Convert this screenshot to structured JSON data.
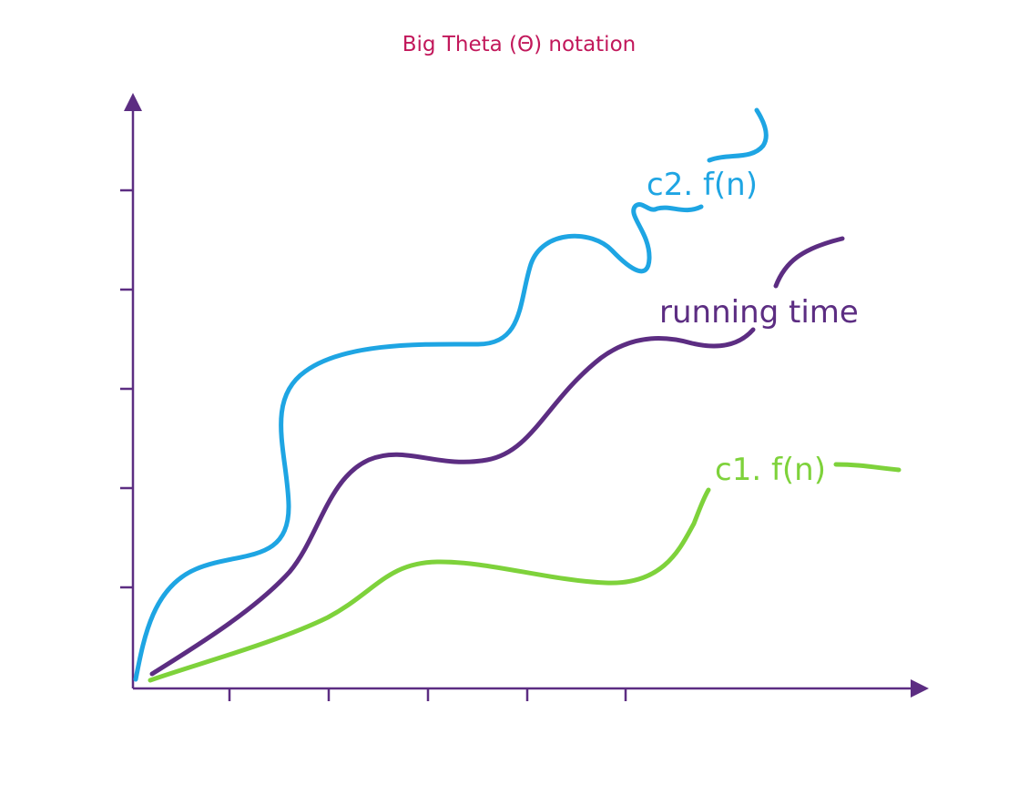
{
  "title": "Big Theta (Θ) notation",
  "curves": [
    {
      "id": "upper-bound",
      "label": "c2. f(n)",
      "color": "#1ea5e3"
    },
    {
      "id": "running-time",
      "label": "running time",
      "color": "#5c2d82"
    },
    {
      "id": "lower-bound",
      "label": "c1. f(n)",
      "color": "#7ed23b"
    }
  ],
  "axis_color": "#5c2d82"
}
